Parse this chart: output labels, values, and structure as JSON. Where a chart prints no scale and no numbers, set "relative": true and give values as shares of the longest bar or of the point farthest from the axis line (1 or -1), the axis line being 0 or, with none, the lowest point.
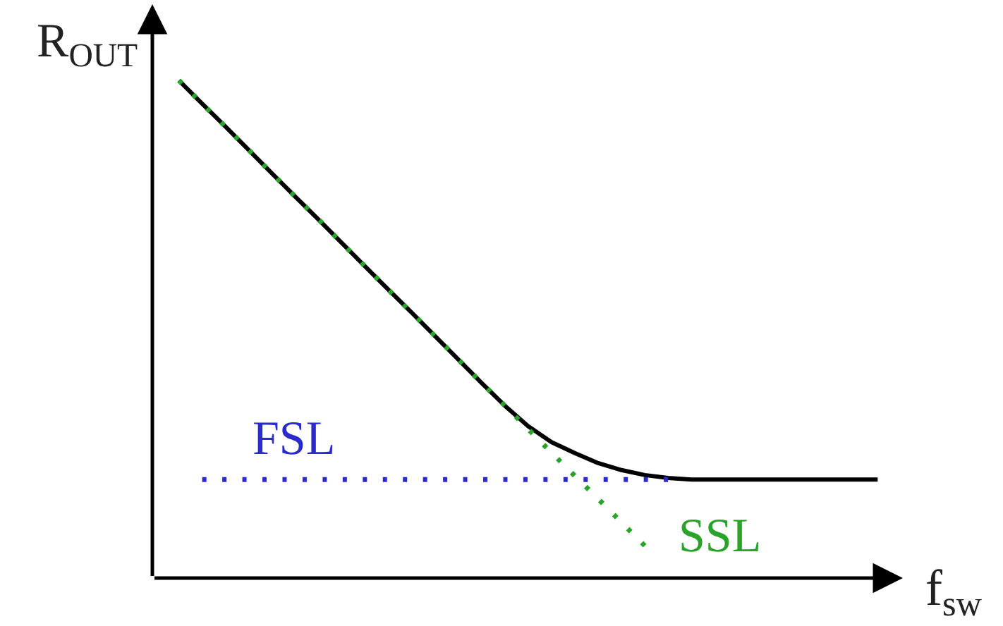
{
  "chart_data": {
    "type": "line",
    "relative": true,
    "xlabel": "f$_{sw}$",
    "ylabel": "R$_{OUT}$",
    "categories": [
      null,
      null,
      null,
      null,
      null,
      null,
      null,
      null,
      null,
      null,
      null,
      null,
      null,
      null,
      null,
      null,
      null,
      null,
      null,
      null,
      null,
      null,
      null,
      null,
      null,
      null,
      null,
      null,
      null,
      null,
      null
    ],
    "series": [
      {
        "color": "#000000",
        "line_style": "solid",
        "values": [
          1.0,
          0.953,
          0.907,
          0.86,
          0.813,
          0.766,
          0.72,
          0.673,
          0.626,
          0.579,
          0.533,
          0.486,
          0.439,
          0.392,
          0.346,
          0.305,
          0.273,
          0.251,
          0.231,
          0.217,
          0.207,
          0.201,
          0.198,
          0.198,
          0.198,
          0.198,
          0.198,
          0.198,
          0.198,
          0.198,
          0.198
        ]
      },
      {
        "name": "SSL",
        "color": "#29a329",
        "line_style": "dotted",
        "values": [
          1.0,
          0.953,
          0.907,
          0.86,
          0.813,
          0.766,
          0.72,
          0.673,
          0.626,
          0.579,
          0.533,
          0.486,
          0.439,
          0.392,
          0.346,
          0.299,
          0.252,
          0.205,
          0.159,
          0.112,
          0.065,
          null,
          null,
          null,
          null,
          null,
          null,
          null,
          null,
          null,
          null
        ]
      },
      {
        "name": "FSL",
        "color": "#2b2bcc",
        "line_style": "dotted",
        "values": [
          null,
          0.198,
          0.198,
          0.198,
          0.198,
          0.198,
          0.198,
          0.198,
          0.198,
          0.198,
          0.198,
          0.198,
          0.198,
          0.198,
          0.198,
          0.198,
          0.198,
          0.198,
          0.198,
          0.198,
          0.198,
          0.198,
          null,
          null,
          null,
          null,
          null,
          null,
          null,
          null,
          null
        ]
      }
    ]
  }
}
